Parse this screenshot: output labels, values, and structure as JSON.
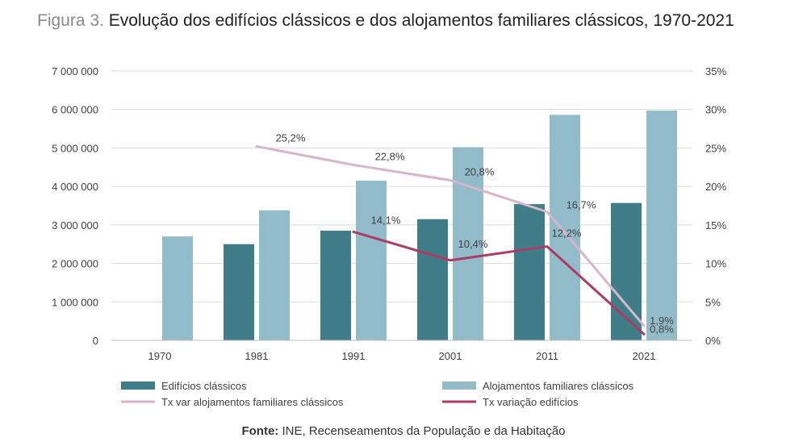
{
  "header": {
    "figure_label": "Figura 3.",
    "title": "Evolução dos edifícios clássicos e dos alojamentos familiares clássicos, 1970-2021"
  },
  "chart_data": {
    "type": "bar",
    "categories": [
      "1970",
      "1981",
      "1991",
      "2001",
      "2011",
      "2021"
    ],
    "y_left": {
      "range": [
        0,
        7000000
      ],
      "ticks": [
        0,
        1000000,
        2000000,
        3000000,
        4000000,
        5000000,
        6000000,
        7000000
      ],
      "tick_labels": [
        "0",
        "1 000 000",
        "2 000 000",
        "3 000 000",
        "4 000 000",
        "5 000 000",
        "6 000 000",
        "7 000 000"
      ]
    },
    "y_right": {
      "range": [
        0,
        35
      ],
      "ticks": [
        0,
        5,
        10,
        15,
        20,
        25,
        30,
        35
      ],
      "tick_labels": [
        "0%",
        "5%",
        "10%",
        "15%",
        "20%",
        "25%",
        "30%",
        "35%"
      ]
    },
    "grid": true,
    "legend_position": "bottom",
    "series": [
      {
        "name": "Edifícios clássicos",
        "kind": "bar",
        "axis": "left",
        "color": "#3f7d88",
        "values": [
          null,
          2500000,
          2850000,
          3150000,
          3540000,
          3570000
        ]
      },
      {
        "name": "Alojamentos familiares clássicos",
        "kind": "bar",
        "axis": "left",
        "color": "#93bccb",
        "values": [
          2700000,
          3380000,
          4150000,
          5020000,
          5860000,
          5970000
        ]
      },
      {
        "name": "Tx  var alojamentos familiares clássicos",
        "kind": "line",
        "axis": "right",
        "color": "#d6b6cb",
        "values": [
          null,
          25.2,
          22.8,
          20.8,
          16.7,
          1.9
        ],
        "labels": [
          null,
          "25,2%",
          "22,8%",
          "20,8%",
          "16,7%",
          "1,9%"
        ]
      },
      {
        "name": "Tx  variação edifícios",
        "kind": "line",
        "axis": "right",
        "color": "#ad3b63",
        "values": [
          null,
          null,
          14.1,
          10.4,
          12.2,
          0.8
        ],
        "labels": [
          null,
          null,
          "14,1%",
          "10,4%",
          "12,2%",
          "0,8%"
        ]
      }
    ]
  },
  "source": {
    "label": "Fonte:",
    "text": " INE, Recenseamentos da População e da Habitação"
  }
}
